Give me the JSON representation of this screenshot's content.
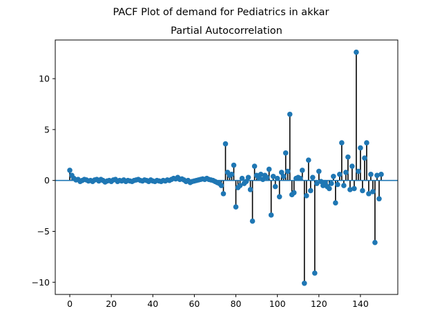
{
  "figure": {
    "suptitle": "PACF Plot of demand for Pediatrics in akkar"
  },
  "chart_data": {
    "type": "scatter",
    "style": "stem",
    "title": "Partial Autocorrelation",
    "xlabel": "",
    "ylabel": "",
    "xlim": [
      -7,
      158
    ],
    "ylim": [
      -11.2,
      13.8
    ],
    "xticks": [
      0,
      20,
      40,
      60,
      80,
      100,
      120,
      140
    ],
    "yticks": [
      -10,
      -5,
      0,
      5,
      10
    ],
    "xtick_labels": [
      "0",
      "20",
      "40",
      "60",
      "80",
      "100",
      "120",
      "140"
    ],
    "ytick_labels": [
      "−10",
      "−5",
      "0",
      "5",
      "10"
    ],
    "grid": false,
    "colors": {
      "marker": "#1f77b4",
      "stem": "#000000",
      "baseline": "#1f77b4"
    },
    "x": [
      0,
      1,
      2,
      3,
      4,
      5,
      6,
      7,
      8,
      9,
      10,
      11,
      12,
      13,
      14,
      15,
      16,
      17,
      18,
      19,
      20,
      21,
      22,
      23,
      24,
      25,
      26,
      27,
      28,
      29,
      30,
      31,
      32,
      33,
      34,
      35,
      36,
      37,
      38,
      39,
      40,
      41,
      42,
      43,
      44,
      45,
      46,
      47,
      48,
      49,
      50,
      51,
      52,
      53,
      54,
      55,
      56,
      57,
      58,
      59,
      60,
      61,
      62,
      63,
      64,
      65,
      66,
      67,
      68,
      69,
      70,
      71,
      72,
      73,
      74,
      75,
      76,
      77,
      78,
      79,
      80,
      81,
      82,
      83,
      84,
      85,
      86,
      87,
      88,
      89,
      90,
      91,
      92,
      93,
      94,
      95,
      96,
      97,
      98,
      99,
      100,
      101,
      102,
      103,
      104,
      105,
      106,
      107,
      108,
      109,
      110,
      111,
      112,
      113,
      114,
      115,
      116,
      117,
      118,
      119,
      120,
      121,
      122,
      123,
      124,
      125,
      126,
      127,
      128,
      129,
      130,
      131,
      132,
      133,
      134,
      135,
      136,
      137,
      138,
      139,
      140,
      141,
      142,
      143,
      144,
      145,
      146,
      147,
      148,
      149,
      150
    ],
    "values": [
      1.0,
      0.5,
      0.2,
      0.05,
      0.1,
      -0.1,
      0.0,
      0.1,
      0.05,
      -0.05,
      0.0,
      -0.1,
      0.05,
      0.1,
      -0.05,
      0.1,
      0.0,
      -0.15,
      -0.05,
      0.0,
      -0.1,
      0.05,
      0.1,
      -0.1,
      0.0,
      -0.05,
      0.05,
      -0.1,
      0.0,
      -0.05,
      -0.1,
      0.0,
      0.05,
      0.1,
      0.0,
      -0.05,
      0.05,
      0.0,
      -0.1,
      0.05,
      -0.05,
      -0.1,
      0.0,
      -0.05,
      -0.1,
      0.0,
      -0.05,
      0.05,
      0.0,
      0.1,
      0.2,
      0.15,
      0.3,
      0.1,
      0.15,
      0.05,
      -0.1,
      0.0,
      -0.2,
      -0.1,
      -0.05,
      0.0,
      0.05,
      0.1,
      0.15,
      0.1,
      0.2,
      0.1,
      0.05,
      0.0,
      -0.1,
      -0.2,
      -0.3,
      -0.5,
      -1.3,
      3.6,
      0.8,
      0.5,
      0.6,
      1.5,
      -2.6,
      -0.7,
      -0.5,
      0.2,
      -0.3,
      -0.1,
      0.3,
      -0.9,
      -4.0,
      1.4,
      0.5,
      0.3,
      0.6,
      0.1,
      0.5,
      0.3,
      1.1,
      -3.4,
      0.4,
      -0.6,
      0.2,
      -1.6,
      0.8,
      0.4,
      2.7,
      0.9,
      6.5,
      -1.4,
      -1.2,
      0.2,
      0.3,
      0.2,
      1.0,
      -10.1,
      -1.5,
      2.0,
      -1.0,
      0.3,
      -9.1,
      -0.3,
      0.9,
      -0.1,
      -0.5,
      -0.2,
      -0.6,
      -0.8,
      -0.3,
      0.4,
      -2.2,
      -0.4,
      0.6,
      3.7,
      -0.5,
      0.8,
      2.3,
      -0.9,
      1.4,
      -0.8,
      12.6,
      0.9,
      3.2,
      -1.0,
      2.2,
      3.7,
      -1.3,
      0.6,
      -1.1,
      -6.1,
      0.5,
      -1.8,
      0.6
    ]
  }
}
